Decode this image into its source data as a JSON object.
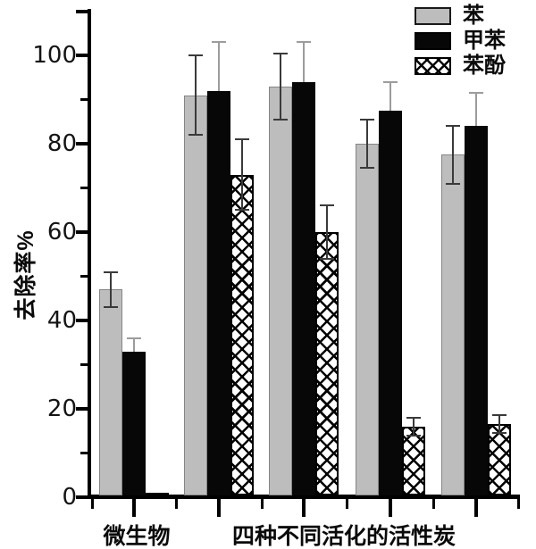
{
  "chart_data": {
    "type": "bar",
    "ylabel": "去除率%",
    "ylim": [
      0,
      110
    ],
    "y_ticks_labeled": [
      0,
      20,
      40,
      60,
      80,
      100
    ],
    "y_minor_tick_step": 10,
    "grid": false,
    "legend": {
      "position": "top-right",
      "entries": [
        "苯",
        "甲苯",
        "苯酚"
      ]
    },
    "x_group_labels": [
      {
        "text": "微生物",
        "groups": [
          1
        ]
      },
      {
        "text": "四种不同活化的活性炭",
        "groups": [
          2,
          3,
          4,
          5
        ]
      }
    ],
    "group_count": 5,
    "series": [
      {
        "name": "苯",
        "pattern": "solid-gray",
        "fill": "#bdbdbd",
        "values": [
          47,
          91,
          93,
          80,
          77.5
        ],
        "errors": [
          4,
          9,
          7.5,
          5.5,
          6.5
        ]
      },
      {
        "name": "甲苯",
        "pattern": "solid-black",
        "fill": "#070707",
        "values": [
          33,
          92,
          94,
          87.5,
          84
        ],
        "errors": [
          3,
          11,
          9,
          6.5,
          7.5
        ]
      },
      {
        "name": "苯酚",
        "pattern": "crosshatch",
        "fill": "#ffffff",
        "hatch_line_color": "#000000",
        "values": [
          1,
          73,
          60,
          16,
          16.5
        ],
        "errors": [
          0,
          8,
          6,
          2,
          2
        ]
      }
    ],
    "colors": {
      "axis": "#000000",
      "error_bar_dark": "#3a3a3a",
      "error_bar_light": "#9c9c9c"
    }
  }
}
